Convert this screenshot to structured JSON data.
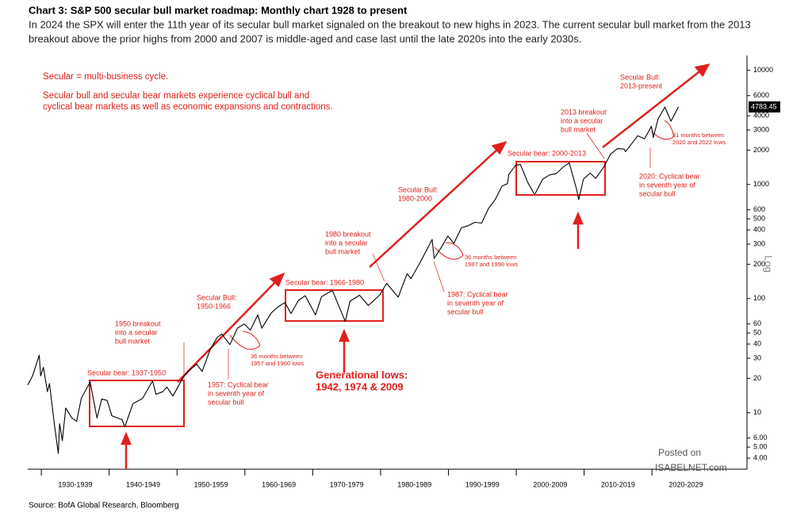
{
  "chart_data": {
    "type": "line",
    "title": "Chart 3: S&P 500 secular bull market roadmap: Monthly chart 1928 to present",
    "subtitle": [
      "In 2024 the SPX will enter the 11th year of its secular bull market signaled on the breakout to new highs in 2023. The current secular bull market from the 2013",
      "breakout above the prior highs from 2000 and 2007 is middle-aged and case last until the late 2020s into the early 2030s."
    ],
    "source": "Source: BofA Global Research, Bloomberg",
    "watermark": [
      "Posted on",
      "ISABELNET.com"
    ],
    "y_axis_label": "Log",
    "log_scale": true,
    "color": "#000000",
    "x": [
      1928.0,
      1928.7,
      1929.7,
      1929.9,
      1930.3,
      1930.9,
      1931.2,
      1931.9,
      1932.5,
      1932.7,
      1933.1,
      1933.6,
      1934.5,
      1935.2,
      1935.9,
      1937.2,
      1938.2,
      1938.9,
      1939.7,
      1940.4,
      1941.9,
      1942.3,
      1943.5,
      1944.9,
      1946.4,
      1946.9,
      1947.9,
      1948.5,
      1949.4,
      1950.9,
      1951.9,
      1952.9,
      1953.7,
      1954.9,
      1955.9,
      1956.6,
      1957.8,
      1958.9,
      1959.9,
      1960.8,
      1961.9,
      1962.5,
      1963.9,
      1964.9,
      1965.9,
      1966.8,
      1967.9,
      1968.9,
      1970.4,
      1971.3,
      1972.9,
      1974.8,
      1975.5,
      1976.9,
      1978.2,
      1979.9,
      1980.9,
      1982.6,
      1983.9,
      1984.5,
      1985.9,
      1987.6,
      1987.9,
      1988.9,
      1989.9,
      1990.8,
      1991.9,
      1992.9,
      1993.9,
      1994.9,
      1995.9,
      1996.9,
      1997.9,
      1998.7,
      1998.9,
      1999.9,
      2000.6,
      2001.7,
      2002.7,
      2003.9,
      2004.9,
      2005.9,
      2006.9,
      2007.8,
      2008.9,
      2009.2,
      2009.9,
      2010.9,
      2011.7,
      2012.9,
      2013.9,
      2014.9,
      2015.9,
      2016.1,
      2016.9,
      2017.9,
      2018.9,
      2019.9,
      2020.2,
      2020.9,
      2021.9,
      2022.8,
      2023.9
    ],
    "values": [
      17.5,
      21,
      31.9,
      21,
      25,
      15.3,
      18,
      8.1,
      4.4,
      8,
      5.7,
      11,
      9,
      8.4,
      13.4,
      18.6,
      9,
      13.2,
      12.8,
      9.4,
      8.7,
      7.5,
      12,
      13.3,
      19,
      14.5,
      15.3,
      16.8,
      14,
      20.4,
      23.8,
      26.6,
      23,
      36,
      45.5,
      49,
      39.5,
      55,
      60,
      53,
      72,
      55,
      75,
      84.7,
      92.4,
      74,
      96.5,
      106,
      72,
      104,
      118,
      63,
      95,
      107,
      87,
      108,
      136,
      103,
      165,
      150,
      211,
      330,
      225,
      278,
      353,
      305,
      417,
      436,
      466,
      459,
      616,
      740,
      970,
      1017,
      1229,
      1469,
      1500,
      1040,
      815,
      1112,
      1212,
      1248,
      1418,
      1549,
      903,
      735,
      1115,
      1258,
      1131,
      1426,
      1848,
      2059,
      2044,
      1940,
      2239,
      2674,
      2507,
      3231,
      2585,
      3756,
      4766,
      3585,
      4783.45
    ],
    "xlim": [
      1928,
      2034
    ],
    "xticks": [
      {
        "value": 1930,
        "label": "1930-1939"
      },
      {
        "value": 1940,
        "label": "1940-1949"
      },
      {
        "value": 1950,
        "label": "1950-1959"
      },
      {
        "value": 1960,
        "label": "1960-1969"
      },
      {
        "value": 1970,
        "label": "1970-1979"
      },
      {
        "value": 1980,
        "label": "1980-1989"
      },
      {
        "value": 1990,
        "label": "1990-1999"
      },
      {
        "value": 2000,
        "label": "2000-2009"
      },
      {
        "value": 2010,
        "label": "2010-2019"
      },
      {
        "value": 2020,
        "label": "2020-2029"
      }
    ],
    "ylim": [
      3.2,
      13500
    ],
    "yticks": [
      {
        "value": 4,
        "label": "4.00"
      },
      {
        "value": 5,
        "label": "5.00"
      },
      {
        "value": 6,
        "label": "6.00"
      },
      10,
      20,
      30,
      40,
      50,
      60,
      100,
      200,
      300,
      400,
      500,
      600,
      1000,
      2000,
      3000,
      4000,
      6000,
      10000
    ],
    "annotations": [
      [
        "Secular = multi-business cycle."
      ],
      [
        "Secular bull and secular bear markets experience cyclical bull and",
        "cyclical bear markets as well as economic expansions and contractions."
      ],
      [
        "Secular bear: 1937-1950"
      ],
      [
        "1950 breakout",
        "into a secular",
        "bull market"
      ],
      [
        "Secular Bull:",
        "1950-1966"
      ],
      [
        "36 months between",
        "1957 and 1960 lows"
      ],
      [
        "1957: Cyclical bear",
        "in seventh year of",
        "secular bull"
      ],
      [
        "Secular bear: 1966-1980"
      ],
      [
        "1980 breakout",
        "into a secular",
        "bull market"
      ],
      [
        "Generational lows:",
        "1942, 1974 & 2009"
      ],
      [
        "Secular Bull:",
        "1980-2000"
      ],
      [
        "36 months between",
        "1987 and 1990 lows"
      ],
      [
        "1987: Cyclical bear",
        "in seventh year of",
        "secular bull"
      ],
      [
        "Secular bear: 2000-2013"
      ],
      [
        "2013 breakout",
        "into a secular",
        "bull market"
      ],
      [
        "Secular Bull:",
        "2013-present"
      ],
      [
        "31 months between",
        "2020 and 2022 lows"
      ],
      [
        "2020: Cyclical bear",
        "in seventh year of",
        "secular bull"
      ]
    ]
  }
}
